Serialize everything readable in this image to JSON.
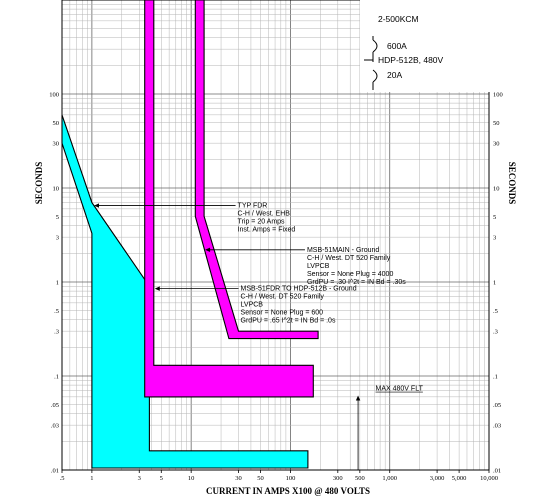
{
  "chart_data": {
    "type": "line",
    "title": "",
    "xlabel": "CURRENT IN AMPS X100 @ 480 VOLTS",
    "ylabel": "SECONDS",
    "x_scale": "log",
    "y_scale": "log",
    "xlim": [
      0.5,
      10000
    ],
    "ylim": [
      0.01,
      1000
    ],
    "grid": true,
    "x_tick_labels": [
      ".5",
      "1",
      "3",
      "5",
      "10",
      "30",
      "50",
      "100",
      "300",
      "500",
      "1,000",
      "3,000",
      "5,000",
      "10,000"
    ],
    "y_tick_labels_left": [
      "100",
      "50",
      "30",
      "10",
      "5",
      "3",
      "1",
      ".5",
      ".3",
      ".1",
      ".05",
      ".03",
      ".01"
    ],
    "y_tick_labels_right": [
      "100",
      "50",
      "30",
      "10",
      "5",
      "3",
      "1",
      ".5",
      ".3",
      ".1",
      ".05",
      ".03",
      ".01"
    ],
    "legend": {
      "cable": "2-500KCM",
      "transformer": "HDP-512B, 480V",
      "primary_rating": "600A",
      "secondary_rating": "20A"
    },
    "series": [
      {
        "name": "TYP FDR",
        "color": "#00ffff",
        "upper": [
          [
            0.5,
            60
          ],
          [
            1,
            7
          ],
          [
            3.8,
            0.9
          ],
          [
            3.8,
            0.016
          ],
          [
            150,
            0.016
          ],
          [
            150,
            0.0105
          ]
        ],
        "lower": [
          [
            0.5,
            30
          ],
          [
            1,
            3.3
          ],
          [
            1,
            0.0105
          ],
          [
            150,
            0.0105
          ]
        ]
      },
      {
        "name": "MSB-51FDR TO HDP-512B - Ground",
        "color": "#ff00ff",
        "upper": [
          [
            4.2,
            1000
          ],
          [
            4.2,
            0.13
          ],
          [
            170,
            0.13
          ],
          [
            170,
            0.06
          ]
        ],
        "lower": [
          [
            3.4,
            1000
          ],
          [
            3.4,
            0.06
          ],
          [
            170,
            0.06
          ]
        ]
      },
      {
        "name": "MSB-51MAIN - Ground",
        "color": "#ff00ff",
        "upper": [
          [
            13.5,
            1000
          ],
          [
            13.5,
            5
          ],
          [
            30,
            0.3
          ],
          [
            190,
            0.3
          ],
          [
            190,
            0.25
          ]
        ],
        "lower": [
          [
            11,
            1000
          ],
          [
            11,
            5
          ],
          [
            24,
            0.25
          ],
          [
            190,
            0.25
          ]
        ]
      }
    ],
    "annotations": [
      {
        "lines": [
          "TYP FDR",
          "C-H / West. EHB",
          "Trip = 20 Amps",
          "Inst. Amps = Fixed"
        ],
        "arrow_to": [
          1.05,
          6.5
        ],
        "text_at": [
          28,
          6.5
        ]
      },
      {
        "lines": [
          "MSB-51MAIN - Ground",
          "C-H / West. DT 520 Family",
          "LVPCB",
          "Sensor = None Plug = 4000",
          "GrdPU = .30 I^2t = IN Bd = .30s"
        ],
        "arrow_to": [
          13.8,
          2.2
        ],
        "text_at": [
          140,
          2.2
        ]
      },
      {
        "lines": [
          "MSB-51FDR TO HDP-512B - Ground",
          "C-H / West. DT 520 Family",
          "LVPCB",
          "Sensor = None Plug = 600",
          "GrdPU = .65 I^2t = IN Bd = .0s"
        ],
        "arrow_to": [
          4.3,
          0.85
        ],
        "text_at": [
          30,
          0.85
        ]
      },
      {
        "lines": [
          "MAX 480V FLT"
        ],
        "arrow_to": [
          480,
          0.06
        ],
        "text_at": [
          520,
          0.06
        ]
      }
    ]
  }
}
